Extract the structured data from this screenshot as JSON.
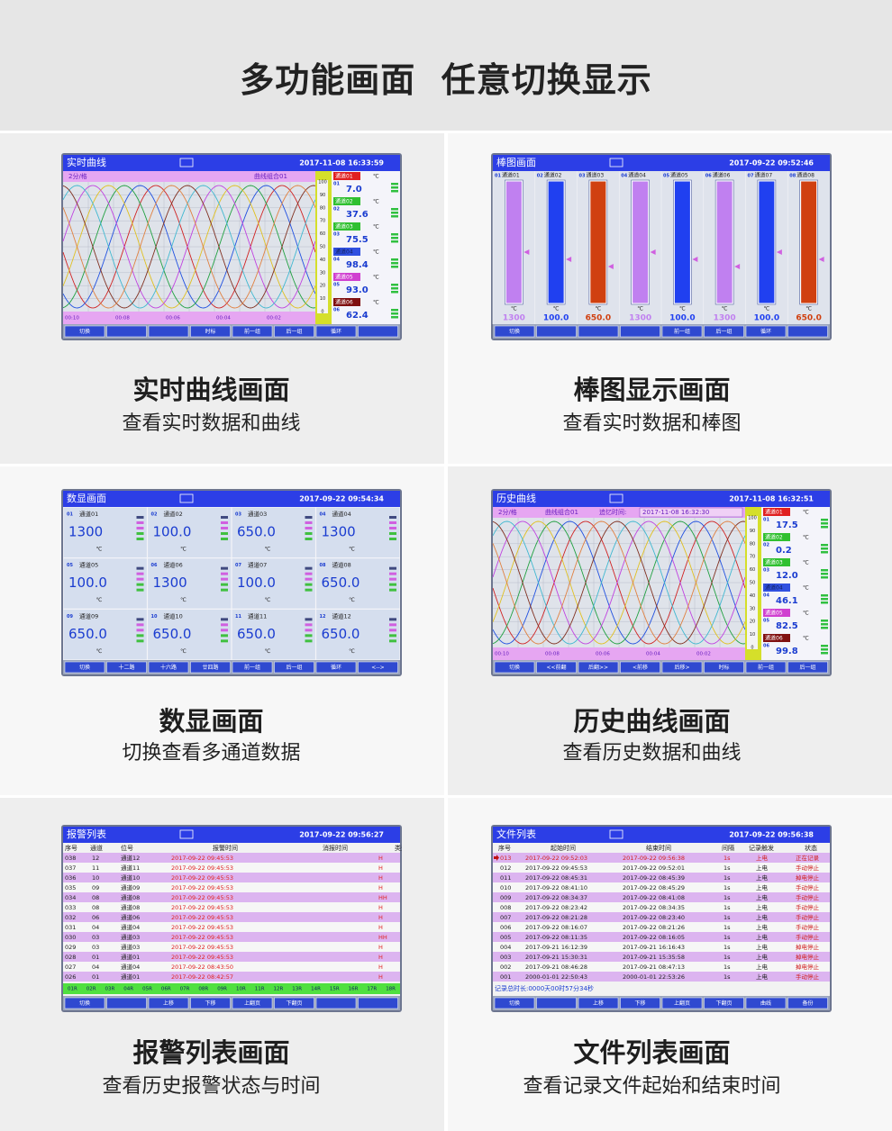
{
  "header": {
    "title": "多功能画面  任意切换显示"
  },
  "panels": [
    {
      "caption": "实时曲线画面",
      "subcaption": "查看实时数据和曲线",
      "screen": {
        "kind": "curve",
        "title": "实时曲线",
        "time": "2017-11-08 16:33:59",
        "info_left": "2分/格",
        "info_right": "曲线组合01",
        "scale": [
          "100",
          "90",
          "80",
          "70",
          "60",
          "50",
          "40",
          "30",
          "20",
          "10",
          "0"
        ],
        "time_ticks": [
          "00:10",
          "00:08",
          "00:06",
          "00:04",
          "00:02"
        ],
        "unit": "℃",
        "channels": [
          {
            "num": "01",
            "label": "通道01",
            "value": "7.0",
            "color": "#e02020"
          },
          {
            "num": "02",
            "label": "通道02",
            "value": "37.6",
            "color": "#30c030"
          },
          {
            "num": "03",
            "label": "通道03",
            "value": "75.5",
            "color": "#30c030"
          },
          {
            "num": "04",
            "label": "通道04",
            "value": "98.4",
            "color": "#3050e0"
          },
          {
            "num": "05",
            "label": "通道05",
            "value": "93.0",
            "color": "#d040d0"
          },
          {
            "num": "06",
            "label": "通道06",
            "value": "62.4",
            "color": "#801010"
          }
        ],
        "buttons": [
          "切换",
          null,
          null,
          "时标",
          "前一组",
          "后一组",
          "循环",
          null
        ]
      }
    },
    {
      "caption": "棒图显示画面",
      "subcaption": "查看实时数据和棒图",
      "screen": {
        "kind": "bars",
        "title": "棒图画面",
        "time": "2017-09-22 09:52:46",
        "unit": "℃",
        "channels": [
          {
            "num": "01",
            "label": "通道01",
            "value": "1300",
            "color": "#c080f0"
          },
          {
            "num": "02",
            "label": "通道02",
            "value": "100.0",
            "color": "#2040f0"
          },
          {
            "num": "03",
            "label": "通道03",
            "value": "650.0",
            "color": "#d04010"
          },
          {
            "num": "04",
            "label": "通道04",
            "value": "1300",
            "color": "#c080f0"
          },
          {
            "num": "05",
            "label": "通道05",
            "value": "100.0",
            "color": "#2040f0"
          },
          {
            "num": "06",
            "label": "通道06",
            "value": "1300",
            "color": "#c080f0"
          },
          {
            "num": "07",
            "label": "通道07",
            "value": "100.0",
            "color": "#2040f0"
          },
          {
            "num": "08",
            "label": "通道08",
            "value": "650.0",
            "color": "#d04010"
          }
        ],
        "buttons": [
          "切换",
          null,
          null,
          null,
          "前一组",
          "后一组",
          "循环",
          null
        ]
      }
    },
    {
      "caption": "数显画面",
      "subcaption": "切换查看多通道数据",
      "screen": {
        "kind": "digital",
        "title": "数显画面",
        "time": "2017-09-22 09:54:34",
        "unit": "℃",
        "channels": [
          {
            "num": "01",
            "label": "通道01",
            "value": "1300"
          },
          {
            "num": "02",
            "label": "通道02",
            "value": "100.0"
          },
          {
            "num": "03",
            "label": "通道03",
            "value": "650.0"
          },
          {
            "num": "04",
            "label": "通道04",
            "value": "1300"
          },
          {
            "num": "05",
            "label": "通道05",
            "value": "100.0"
          },
          {
            "num": "06",
            "label": "通道06",
            "value": "1300"
          },
          {
            "num": "07",
            "label": "通道07",
            "value": "100.0"
          },
          {
            "num": "08",
            "label": "通道08",
            "value": "650.0"
          },
          {
            "num": "09",
            "label": "通道09",
            "value": "650.0"
          },
          {
            "num": "10",
            "label": "通道10",
            "value": "650.0"
          },
          {
            "num": "11",
            "label": "通道11",
            "value": "650.0"
          },
          {
            "num": "12",
            "label": "通道12",
            "value": "650.0"
          }
        ],
        "buttons": [
          "切换",
          "十二路",
          "十六路",
          "廿四路",
          "前一组",
          "后一组",
          "循环",
          "<-->"
        ]
      }
    },
    {
      "caption": "历史曲线画面",
      "subcaption": "查看历史数据和曲线",
      "screen": {
        "kind": "curve",
        "title": "历史曲线",
        "time": "2017-11-08 16:32:51",
        "info_left": "2分/格",
        "info_right": "曲线组合01",
        "recall_label": "追忆时间:",
        "recall_time": "2017-11-08 16:32:30",
        "scale": [
          "100",
          "90",
          "80",
          "70",
          "60",
          "50",
          "40",
          "30",
          "20",
          "10",
          "0"
        ],
        "time_ticks": [
          "00:10",
          "00:08",
          "00:06",
          "00:04",
          "00:02"
        ],
        "unit": "℃",
        "channels": [
          {
            "num": "01",
            "label": "通道01",
            "value": "17.5",
            "color": "#e02020"
          },
          {
            "num": "02",
            "label": "通道02",
            "value": "0.2",
            "color": "#30c030"
          },
          {
            "num": "03",
            "label": "通道03",
            "value": "12.0",
            "color": "#30c030"
          },
          {
            "num": "04",
            "label": "通道04",
            "value": "46.1",
            "color": "#3050e0"
          },
          {
            "num": "05",
            "label": "通道05",
            "value": "82.5",
            "color": "#d040d0"
          },
          {
            "num": "06",
            "label": "通道06",
            "value": "99.8",
            "color": "#801010"
          }
        ],
        "buttons": [
          "切换",
          "<<前翻",
          "后翻>>",
          "<前移",
          "后移>",
          "时标",
          "前一组",
          "后一组"
        ]
      }
    },
    {
      "caption": "报警列表画面",
      "subcaption": "查看历史报警状态与时间",
      "screen": {
        "kind": "alarm",
        "title": "报警列表",
        "time": "2017-09-22 09:56:27",
        "headers": [
          "序号",
          "通道",
          "位号",
          "报警时间",
          "消报时间",
          "类型"
        ],
        "rows": [
          [
            "038",
            "12",
            "通道12",
            "2017-09-22 09:45:53",
            "H"
          ],
          [
            "037",
            "11",
            "通道11",
            "2017-09-22 09:45:53",
            "H"
          ],
          [
            "036",
            "10",
            "通道10",
            "2017-09-22 09:45:53",
            "H"
          ],
          [
            "035",
            "09",
            "通道09",
            "2017-09-22 09:45:53",
            "H"
          ],
          [
            "034",
            "08",
            "通道08",
            "2017-09-22 09:45:53",
            "HH"
          ],
          [
            "033",
            "08",
            "通道08",
            "2017-09-22 09:45:53",
            "H"
          ],
          [
            "032",
            "06",
            "通道06",
            "2017-09-22 09:45:53",
            "H"
          ],
          [
            "031",
            "04",
            "通道04",
            "2017-09-22 09:45:53",
            "H"
          ],
          [
            "030",
            "03",
            "通道03",
            "2017-09-22 09:45:53",
            "HH"
          ],
          [
            "029",
            "03",
            "通道03",
            "2017-09-22 09:45:53",
            "H"
          ],
          [
            "028",
            "01",
            "通道01",
            "2017-09-22 09:45:53",
            "H"
          ],
          [
            "027",
            "04",
            "通道04",
            "2017-09-22 08:43:50",
            "H"
          ],
          [
            "026",
            "01",
            "通道01",
            "2017-09-22 08:42:57",
            "H"
          ]
        ],
        "tags": [
          "01R",
          "02R",
          "03R",
          "04R",
          "05R",
          "06R",
          "07R",
          "08R",
          "09R",
          "10R",
          "11R",
          "12R",
          "13R",
          "14R",
          "15R",
          "16R",
          "17R",
          "18R"
        ],
        "buttons": [
          "切换",
          null,
          "上移",
          "下移",
          "上翻页",
          "下翻页",
          null,
          null
        ]
      }
    },
    {
      "caption": "文件列表画面",
      "subcaption": "查看记录文件起始和结束时间",
      "screen": {
        "kind": "files",
        "title": "文件列表",
        "time": "2017-09-22 09:56:38",
        "headers": [
          "序号",
          "起始时间",
          "结束时间",
          "间隔",
          "记录触发",
          "状态"
        ],
        "rows": [
          [
            "013",
            "2017-09-22 09:52:03",
            "2017-09-22 09:56:38",
            "1s",
            "上电",
            "正在记录"
          ],
          [
            "012",
            "2017-09-22 09:45:53",
            "2017-09-22 09:52:01",
            "1s",
            "上电",
            "手动停止"
          ],
          [
            "011",
            "2017-09-22 08:45:31",
            "2017-09-22 08:45:39",
            "1s",
            "上电",
            "掉电停止"
          ],
          [
            "010",
            "2017-09-22 08:41:10",
            "2017-09-22 08:45:29",
            "1s",
            "上电",
            "手动停止"
          ],
          [
            "009",
            "2017-09-22 08:34:37",
            "2017-09-22 08:41:08",
            "1s",
            "上电",
            "手动停止"
          ],
          [
            "008",
            "2017-09-22 08:23:42",
            "2017-09-22 08:34:35",
            "1s",
            "上电",
            "手动停止"
          ],
          [
            "007",
            "2017-09-22 08:21:28",
            "2017-09-22 08:23:40",
            "1s",
            "上电",
            "手动停止"
          ],
          [
            "006",
            "2017-09-22 08:16:07",
            "2017-09-22 08:21:26",
            "1s",
            "上电",
            "手动停止"
          ],
          [
            "005",
            "2017-09-22 08:11:35",
            "2017-09-22 08:16:05",
            "1s",
            "上电",
            "手动停止"
          ],
          [
            "004",
            "2017-09-21 16:12:39",
            "2017-09-21 16:16:43",
            "1s",
            "上电",
            "掉电停止"
          ],
          [
            "003",
            "2017-09-21 15:30:31",
            "2017-09-21 15:35:58",
            "1s",
            "上电",
            "掉电停止"
          ],
          [
            "002",
            "2017-09-21 08:46:28",
            "2017-09-21 08:47:13",
            "1s",
            "上电",
            "掉电停止"
          ],
          [
            "001",
            "2000-01-01 22:50:43",
            "2000-01-01 22:53:26",
            "1s",
            "上电",
            "手动停止"
          ]
        ],
        "footer": "记录总时长:0000天00时57分34秒",
        "buttons": [
          "切换",
          null,
          "上移",
          "下移",
          "上翻页",
          "下翻页",
          "曲线",
          "备份"
        ]
      }
    }
  ]
}
